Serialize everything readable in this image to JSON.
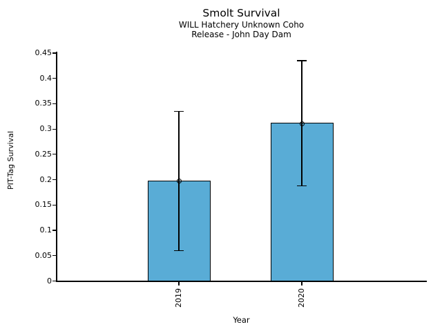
{
  "chart_data": {
    "type": "bar",
    "title": "Smolt Survival",
    "subtitle": [
      "WILL Hatchery Unknown Coho",
      "Release - John Day Dam"
    ],
    "xlabel": "Year",
    "ylabel": "PIT-Tag Survival",
    "categories": [
      "2019",
      "2020"
    ],
    "values": [
      0.197,
      0.311
    ],
    "error_bars": [
      {
        "low": 0.06,
        "high": 0.335
      },
      {
        "low": 0.188,
        "high": 0.435
      }
    ],
    "ylim": [
      0,
      0.45
    ],
    "yticks": [
      0,
      0.05,
      0.1,
      0.15,
      0.2,
      0.25,
      0.3,
      0.35,
      0.4,
      0.45
    ],
    "ytick_labels": [
      "0",
      "0.05",
      "0.1",
      "0.15",
      "0.2",
      "0.25",
      "0.3",
      "0.35",
      "0.4",
      "0.45"
    ],
    "bar_color": "#59ACD6",
    "bar_edge_color": "#000000",
    "error_bar_color": "#000000",
    "marker": "open-circle",
    "grid": false,
    "legend_position": "none",
    "xtick_label_rotation_deg": 90
  }
}
